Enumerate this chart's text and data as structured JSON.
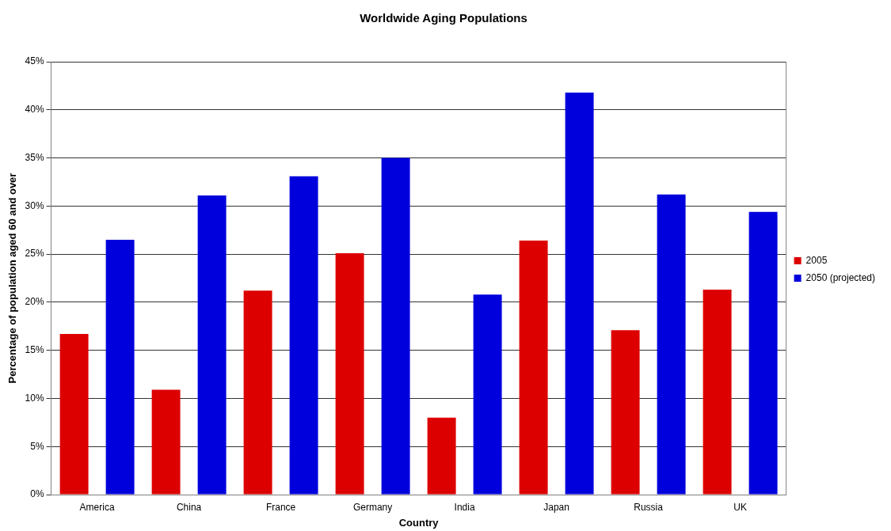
{
  "chart_data": {
    "type": "bar",
    "title": "Worldwide Aging Populations",
    "xlabel": "Country",
    "ylabel": "Percentage of population aged 60 and over",
    "categories": [
      "America",
      "China",
      "France",
      "Germany",
      "India",
      "Japan",
      "Russia",
      "UK"
    ],
    "series": [
      {
        "name": "2005",
        "color": "#dd0000",
        "values": [
          16.7,
          10.9,
          21.2,
          25.1,
          8.0,
          26.4,
          17.1,
          21.3
        ]
      },
      {
        "name": "2050 (projected)",
        "color": "#0000dd",
        "values": [
          26.5,
          31.1,
          33.1,
          35.0,
          20.8,
          41.8,
          31.2,
          29.4
        ]
      }
    ],
    "ylim": [
      0,
      45
    ],
    "yticks": [
      {
        "value": 0,
        "label": "0%"
      },
      {
        "value": 5,
        "label": "5%"
      },
      {
        "value": 10,
        "label": "10%"
      },
      {
        "value": 15,
        "label": "15%"
      },
      {
        "value": 20,
        "label": "20%"
      },
      {
        "value": 25,
        "label": "25%"
      },
      {
        "value": 30,
        "label": "30%"
      },
      {
        "value": 35,
        "label": "35%"
      },
      {
        "value": 40,
        "label": "40%"
      },
      {
        "value": 45,
        "label": "45%"
      }
    ],
    "grid": "y",
    "legend": "right"
  }
}
